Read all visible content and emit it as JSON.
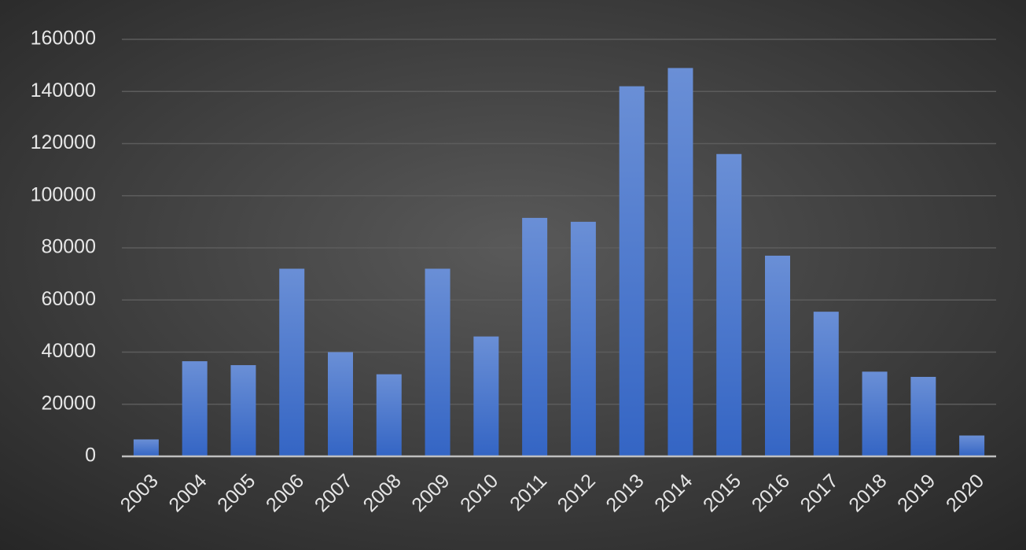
{
  "chart_data": {
    "type": "bar",
    "categories": [
      "2003",
      "2004",
      "2005",
      "2006",
      "2007",
      "2008",
      "2009",
      "2010",
      "2011",
      "2012",
      "2013",
      "2014",
      "2015",
      "2016",
      "2017",
      "2018",
      "2019",
      "2020"
    ],
    "values": [
      6500,
      36500,
      35000,
      72000,
      40000,
      31500,
      72000,
      46000,
      91500,
      90000,
      142000,
      149000,
      116000,
      77000,
      55500,
      32500,
      30500,
      8000
    ],
    "color": "#4472c4",
    "ylim": [
      0,
      160000
    ],
    "yticks": [
      0,
      20000,
      40000,
      60000,
      80000,
      100000,
      120000,
      140000,
      160000
    ],
    "grid": true
  }
}
